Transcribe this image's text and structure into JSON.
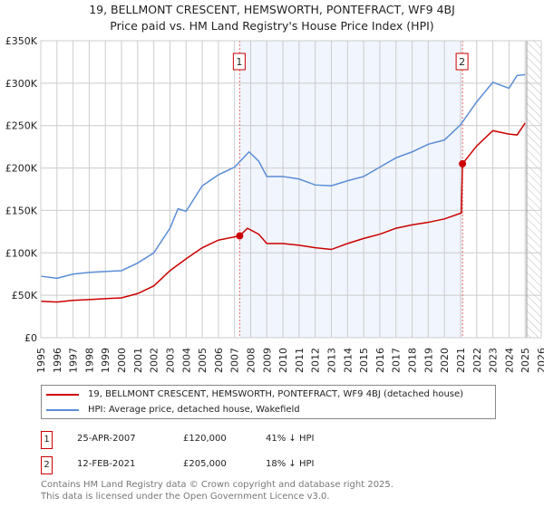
{
  "title_line1": "19, BELLMONT CRESCENT, HEMSWORTH, PONTEFRACT, WF9 4BJ",
  "title_line2": "Price paid vs. HM Land Registry's House Price Index (HPI)",
  "chart_data": {
    "type": "line",
    "xlim": [
      1995,
      2026
    ],
    "ylim": [
      0,
      350000
    ],
    "yticks": [
      0,
      50000,
      100000,
      150000,
      200000,
      250000,
      300000,
      350000
    ],
    "ytick_labels": [
      "£0",
      "£50K",
      "£100K",
      "£150K",
      "£200K",
      "£250K",
      "£300K",
      "£350K"
    ],
    "xticks": [
      1995,
      1996,
      1997,
      1998,
      1999,
      2000,
      2001,
      2002,
      2003,
      2004,
      2005,
      2006,
      2007,
      2008,
      2009,
      2010,
      2011,
      2012,
      2013,
      2014,
      2015,
      2016,
      2017,
      2018,
      2019,
      2020,
      2021,
      2022,
      2023,
      2024,
      2025,
      2026
    ],
    "grid": true,
    "shaded_range": [
      2007.32,
      2021.12
    ],
    "hatched_from": 2025.1,
    "series": [
      {
        "name": "19, BELLMONT CRESCENT, HEMSWORTH, PONTEFRACT, WF9 4BJ (detached house)",
        "color": "#cc0000",
        "x": [
          1995,
          1996,
          1997,
          1998,
          1999,
          2000,
          2001,
          2002,
          2003,
          2004,
          2005,
          2006,
          2007.32,
          2007.8,
          2008.5,
          2009,
          2010,
          2011,
          2012,
          2013,
          2014,
          2015,
          2016,
          2017,
          2018,
          2019,
          2020,
          2021.05,
          2021.12,
          2022,
          2023,
          2024,
          2024.5,
          2025
        ],
        "y": [
          43000,
          42000,
          44000,
          45000,
          46000,
          47000,
          52000,
          61000,
          79000,
          93000,
          106000,
          115000,
          120000,
          129000,
          122000,
          111000,
          111000,
          109000,
          106000,
          104000,
          111000,
          117000,
          122000,
          129000,
          133000,
          136000,
          140000,
          147000,
          205000,
          226000,
          244000,
          240000,
          239000,
          253000
        ]
      },
      {
        "name": "HPI: Average price, detached house, Wakefield",
        "color": "#5b8dd6",
        "x": [
          1995,
          1996,
          1997,
          1998,
          1999,
          2000,
          2001,
          2002,
          2003,
          2003.5,
          2004,
          2005,
          2006,
          2007,
          2007.9,
          2008.5,
          2009,
          2010,
          2011,
          2012,
          2013,
          2014,
          2015,
          2016,
          2017,
          2018,
          2019,
          2020,
          2021,
          2022,
          2023,
          2024,
          2024.5,
          2025
        ],
        "y": [
          72500,
          70000,
          75000,
          77000,
          78000,
          79000,
          88000,
          100000,
          129000,
          152000,
          149000,
          179000,
          192000,
          201000,
          219000,
          208000,
          190000,
          190000,
          187000,
          180000,
          179000,
          185000,
          190000,
          201000,
          212000,
          219000,
          228000,
          233000,
          251000,
          278000,
          301000,
          294000,
          309000,
          310000
        ]
      }
    ],
    "annotations": [
      {
        "label": "1",
        "x": 2007.32,
        "y": 120000
      },
      {
        "label": "2",
        "x": 2021.12,
        "y": 205000
      }
    ]
  },
  "legend": {
    "items": [
      {
        "label": "19, BELLMONT CRESCENT, HEMSWORTH, PONTEFRACT, WF9 4BJ (detached house)",
        "color": "#cc0000"
      },
      {
        "label": "HPI: Average price, detached house, Wakefield",
        "color": "#5b8dd6"
      }
    ]
  },
  "transactions": [
    {
      "num": "1",
      "date": "25-APR-2007",
      "price": "£120,000",
      "hpi": "41% ↓ HPI"
    },
    {
      "num": "2",
      "date": "12-FEB-2021",
      "price": "£205,000",
      "hpi": "18% ↓ HPI"
    }
  ],
  "footer": {
    "line1": "Contains HM Land Registry data © Crown copyright and database right 2025.",
    "line2": "This data is licensed under the Open Government Licence v3.0."
  }
}
